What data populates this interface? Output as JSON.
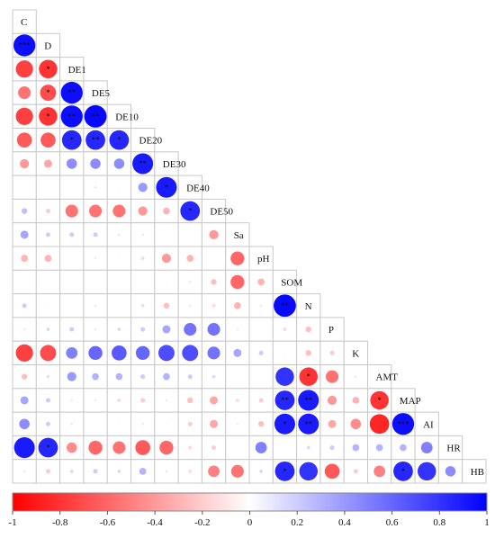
{
  "chart_data": {
    "type": "heatmap",
    "subtype": "correlation-circle-lower-triangle",
    "variables": [
      "C",
      "D",
      "DE1",
      "DE5",
      "DE10",
      "DE20",
      "DE30",
      "DE40",
      "DE50",
      "Sa",
      "pH",
      "SOM",
      "N",
      "P",
      "K",
      "AMT",
      "MAP",
      "AI",
      "HR",
      "HB"
    ],
    "colorbar": {
      "min": -1,
      "max": 1,
      "ticks": [
        "-1",
        "-0.8",
        "-0.6",
        "-0.4",
        "-0.2",
        "0",
        "0.2",
        "0.4",
        "0.6",
        "0.8",
        "1"
      ],
      "low_color": "#ff0000",
      "mid_color": "#ffffff",
      "high_color": "#0000ff"
    },
    "rows": [
      {
        "name": "C",
        "r": [],
        "sig": []
      },
      {
        "name": "D",
        "r": [
          0.95
        ],
        "sig": [
          "***"
        ]
      },
      {
        "name": "DE1",
        "r": [
          -0.75,
          -0.8
        ],
        "sig": [
          "",
          "*"
        ]
      },
      {
        "name": "DE5",
        "r": [
          -0.55,
          -0.7,
          0.95
        ],
        "sig": [
          "",
          "*",
          "**"
        ]
      },
      {
        "name": "DE10",
        "r": [
          -0.75,
          -0.8,
          0.95,
          0.97
        ],
        "sig": [
          "",
          "*",
          "**",
          "**"
        ]
      },
      {
        "name": "DE20",
        "r": [
          -0.65,
          -0.65,
          0.85,
          0.85,
          0.85
        ],
        "sig": [
          "",
          "",
          "*",
          "**",
          "*"
        ]
      },
      {
        "name": "DE30",
        "r": [
          -0.4,
          -0.35,
          0.45,
          0.45,
          0.45,
          0.9
        ],
        "sig": [
          "",
          "",
          "",
          "",
          "",
          "**"
        ]
      },
      {
        "name": "DE40",
        "r": [
          -0.05,
          -0.05,
          0.05,
          0.1,
          0.05,
          0.4,
          0.9
        ],
        "sig": [
          "",
          "",
          "",
          "",
          "",
          "",
          "*"
        ]
      },
      {
        "name": "DE50",
        "r": [
          0.25,
          -0.2,
          -0.55,
          -0.55,
          -0.55,
          -0.4,
          -0.3,
          0.85
        ],
        "sig": [
          "",
          "",
          "",
          "",
          "",
          "",
          "",
          "*"
        ]
      },
      {
        "name": "Sa",
        "r": [
          0.35,
          0.2,
          0.2,
          0.2,
          0.1,
          0.1,
          0.05,
          -0.05,
          -0.4
        ],
        "sig": [
          "",
          "",
          "",
          "",
          "",
          "",
          "",
          "",
          ""
        ]
      },
      {
        "name": "pH",
        "r": [
          -0.3,
          -0.3,
          -0.05,
          -0.1,
          0.05,
          -0.15,
          -0.4,
          -0.3,
          0.0,
          -0.6
        ],
        "sig": [
          "",
          "",
          "",
          "",
          "",
          "",
          "",
          "",
          "",
          ""
        ]
      },
      {
        "name": "SOM",
        "r": [
          0.05,
          0.0,
          0.05,
          -0.05,
          0.05,
          0.0,
          0.05,
          0.1,
          -0.25,
          -0.6,
          -0.3
        ],
        "sig": [
          "",
          "",
          "",
          "",
          "",
          "",
          "",
          "",
          "",
          "",
          ""
        ]
      },
      {
        "name": "N",
        "r": [
          0.2,
          0.05,
          -0.05,
          -0.1,
          -0.05,
          -0.15,
          -0.25,
          -0.1,
          -0.15,
          -0.3,
          -0.1,
          0.97
        ],
        "sig": [
          "",
          "",
          "",
          "",
          "",
          "",
          "",
          "",
          "",
          "",
          "",
          "**"
        ]
      },
      {
        "name": "P",
        "r": [
          -0.1,
          0.15,
          0.2,
          0.1,
          0.15,
          0.2,
          0.35,
          0.55,
          0.55,
          -0.1,
          -0.05,
          -0.15,
          -0.25
        ],
        "sig": [
          "",
          "",
          "",
          "",
          "",
          "",
          "",
          "",
          "",
          "",
          "",
          "",
          ""
        ]
      },
      {
        "name": "K",
        "r": [
          -0.75,
          -0.7,
          0.5,
          0.6,
          0.65,
          0.6,
          0.7,
          0.7,
          0.55,
          0.35,
          0.2,
          0.05,
          -0.25,
          -0.2
        ],
        "sig": [
          "",
          "",
          "",
          "",
          "",
          "",
          "",
          "",
          "",
          "",
          "",
          "",
          "",
          ""
        ]
      },
      {
        "name": "AMT",
        "r": [
          -0.25,
          -0.15,
          0.4,
          0.3,
          0.3,
          0.2,
          0.3,
          0.2,
          0.15,
          0.05,
          0.05,
          0.8,
          -0.8,
          -0.55,
          0.1
        ],
        "sig": [
          "",
          "",
          "",
          "",
          "",
          "",
          "",
          "",
          "",
          "",
          "",
          "",
          "*",
          "",
          ""
        ]
      },
      {
        "name": "MAP",
        "r": [
          0.35,
          0.2,
          -0.1,
          -0.1,
          -0.15,
          -0.2,
          -0.1,
          -0.25,
          -0.35,
          -0.15,
          -0.2,
          0.85,
          0.9,
          -0.4,
          -0.3,
          -0.8
        ],
        "sig": [
          "",
          "",
          "",
          "",
          "",
          "",
          "",
          "",
          "",
          "",
          "",
          "**",
          "**",
          "",
          "",
          "*"
        ]
      },
      {
        "name": "AI",
        "r": [
          0.45,
          0.2,
          0.1,
          0.05,
          0.05,
          -0.1,
          -0.05,
          -0.2,
          -0.35,
          -0.1,
          -0.25,
          0.9,
          0.9,
          -0.35,
          -0.45,
          -0.85,
          0.95
        ],
        "sig": [
          "",
          "",
          "",
          "",
          "",
          "",
          "",
          "",
          "",
          "",
          "",
          "*",
          "**",
          "",
          "",
          "",
          "***"
        ]
      },
      {
        "name": "HR",
        "r": [
          0.9,
          0.85,
          -0.45,
          -0.6,
          -0.55,
          -0.65,
          -0.6,
          -0.15,
          -0.2,
          0.05,
          0.5,
          0.05,
          0.15,
          0.2,
          0.3,
          0.3,
          0.3,
          0.5
        ],
        "sig": [
          "",
          "*",
          "",
          "",
          "",
          "",
          "",
          "",
          "",
          "",
          "",
          "",
          "",
          "",
          "",
          "",
          "",
          ""
        ]
      },
      {
        "name": "HB",
        "r": [
          -0.1,
          -0.2,
          0.15,
          0.2,
          0.15,
          0.3,
          0.1,
          -0.15,
          -0.5,
          -0.55,
          0.15,
          0.85,
          0.8,
          -0.65,
          -0.2,
          -0.5,
          0.85,
          0.8,
          0.45
        ],
        "sig": [
          "",
          "",
          "",
          "",
          "",
          "",
          "",
          "",
          "",
          "",
          "",
          "*",
          "",
          "",
          "",
          "",
          "*",
          "",
          ""
        ]
      }
    ]
  }
}
